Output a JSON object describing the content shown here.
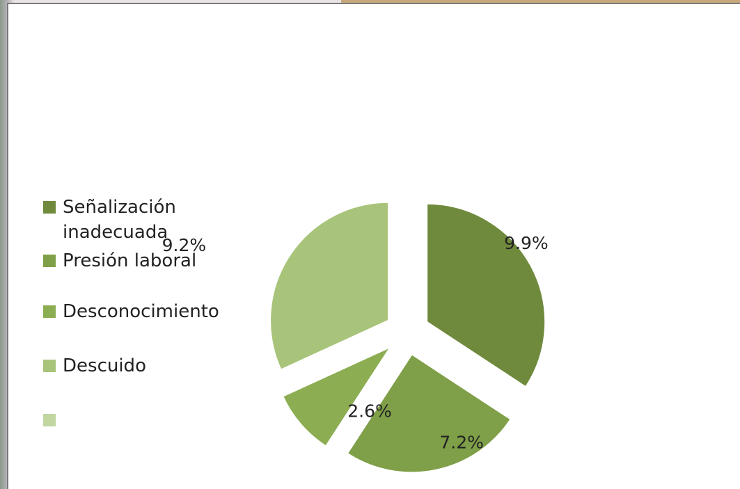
{
  "chart_data": {
    "type": "pie",
    "categories": [
      "Señalización inadecuada",
      "Presión laboral",
      "Desconocimiento",
      "Descuido",
      null
    ],
    "values": [
      9.9,
      7.2,
      2.6,
      9.2,
      null
    ],
    "value_labels": [
      "9.9%",
      "7.2%",
      "2.6%",
      "9.2%",
      null
    ],
    "colors": [
      "#6f8a3c",
      "#7f9f48",
      "#8cad52",
      "#a8c47a",
      "#c2d6a2"
    ],
    "legend": "left"
  }
}
